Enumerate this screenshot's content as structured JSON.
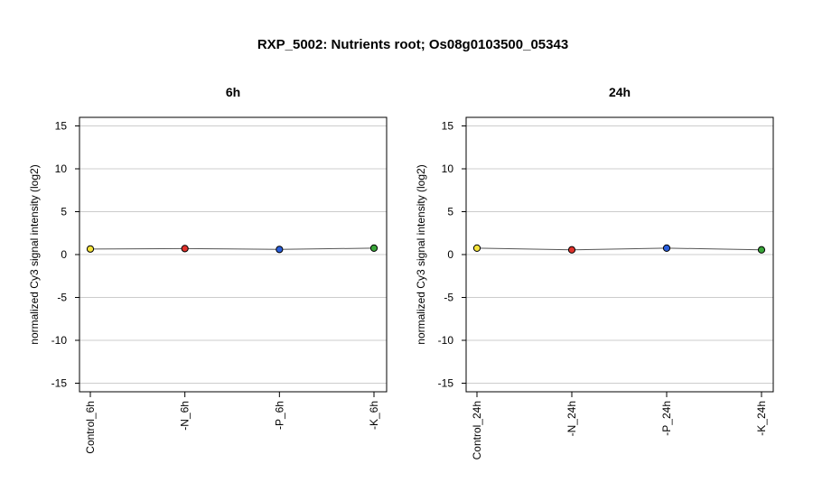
{
  "title": "RXP_5002: Nutrients root; Os08g0103500_05343",
  "chart_data": [
    {
      "type": "line",
      "title": "6h",
      "xlabel": "",
      "ylabel": "normalized Cy3 signal intensity (log2)",
      "categories": [
        "Control_6h",
        "-N_6h",
        "-P_6h",
        "-K_6h"
      ],
      "values": [
        0.65,
        0.7,
        0.6,
        0.75
      ],
      "point_colors": [
        "#f5e33b",
        "#e0312b",
        "#2a5fdc",
        "#3aa63a"
      ],
      "ylim": [
        -16,
        16
      ],
      "yticks": [
        -15,
        -10,
        -5,
        0,
        5,
        10,
        15
      ],
      "grid": true,
      "line_color": "#555555"
    },
    {
      "type": "line",
      "title": "24h",
      "xlabel": "",
      "ylabel": "normalized Cy3 signal intensity (log2)",
      "categories": [
        "Control_24h",
        "-N_24h",
        "-P_24h",
        "-K_24h"
      ],
      "values": [
        0.75,
        0.55,
        0.75,
        0.55
      ],
      "point_colors": [
        "#f5e33b",
        "#e0312b",
        "#2a5fdc",
        "#3aa63a"
      ],
      "ylim": [
        -16,
        16
      ],
      "yticks": [
        -15,
        -10,
        -5,
        0,
        5,
        10,
        15
      ],
      "grid": true,
      "line_color": "#555555"
    }
  ]
}
